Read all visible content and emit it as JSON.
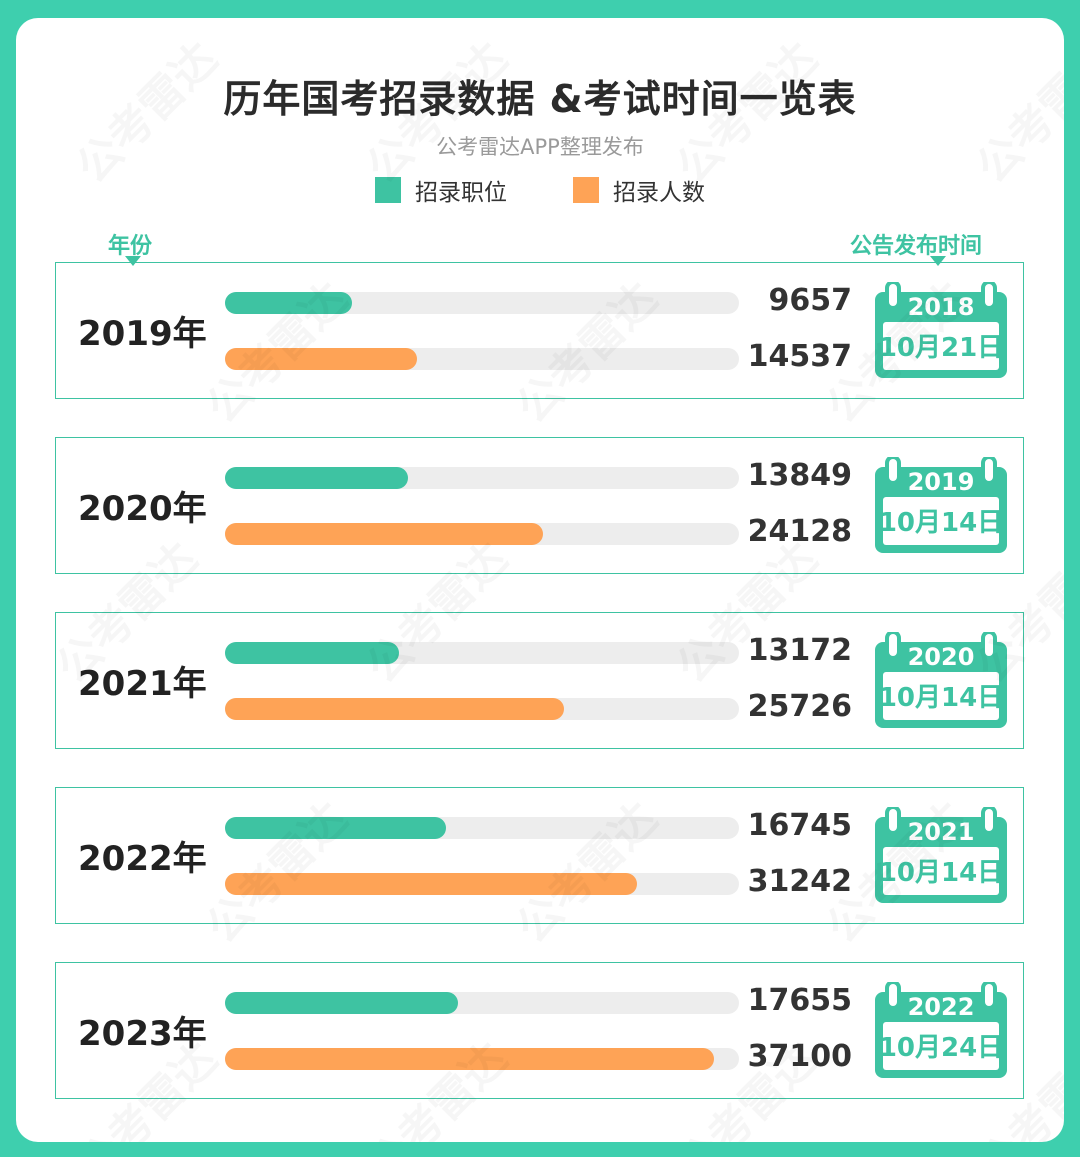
{
  "title": "历年国考招录数据 &考试时间一览表",
  "subtitle": "公考雷达APP整理发布",
  "watermark_text": "公考雷达",
  "colors": {
    "border": "#3ecfae",
    "positions": "#3ec3a2",
    "people": "#fea356",
    "track": "#ededed"
  },
  "headers": {
    "left": "年份",
    "right": "公告发布时间"
  },
  "chart_data": {
    "type": "bar",
    "orientation": "horizontal",
    "legend_position": "top-center",
    "categories": [
      "2019年",
      "2020年",
      "2021年",
      "2022年",
      "2023年"
    ],
    "series": [
      {
        "name": "招录职位",
        "values": [
          9657,
          13849,
          13172,
          16745,
          17655
        ],
        "color": "#3ec3a2"
      },
      {
        "name": "招录人数",
        "values": [
          14537,
          24128,
          25726,
          31242,
          37100
        ],
        "color": "#fea356"
      }
    ],
    "xlim": [
      0,
      39000
    ],
    "announcements": [
      {
        "year": "2018",
        "date": "10月21日"
      },
      {
        "year": "2019",
        "date": "10月14日"
      },
      {
        "year": "2020",
        "date": "10月14日"
      },
      {
        "year": "2021",
        "date": "10月14日"
      },
      {
        "year": "2022",
        "date": "10月24日"
      }
    ]
  }
}
